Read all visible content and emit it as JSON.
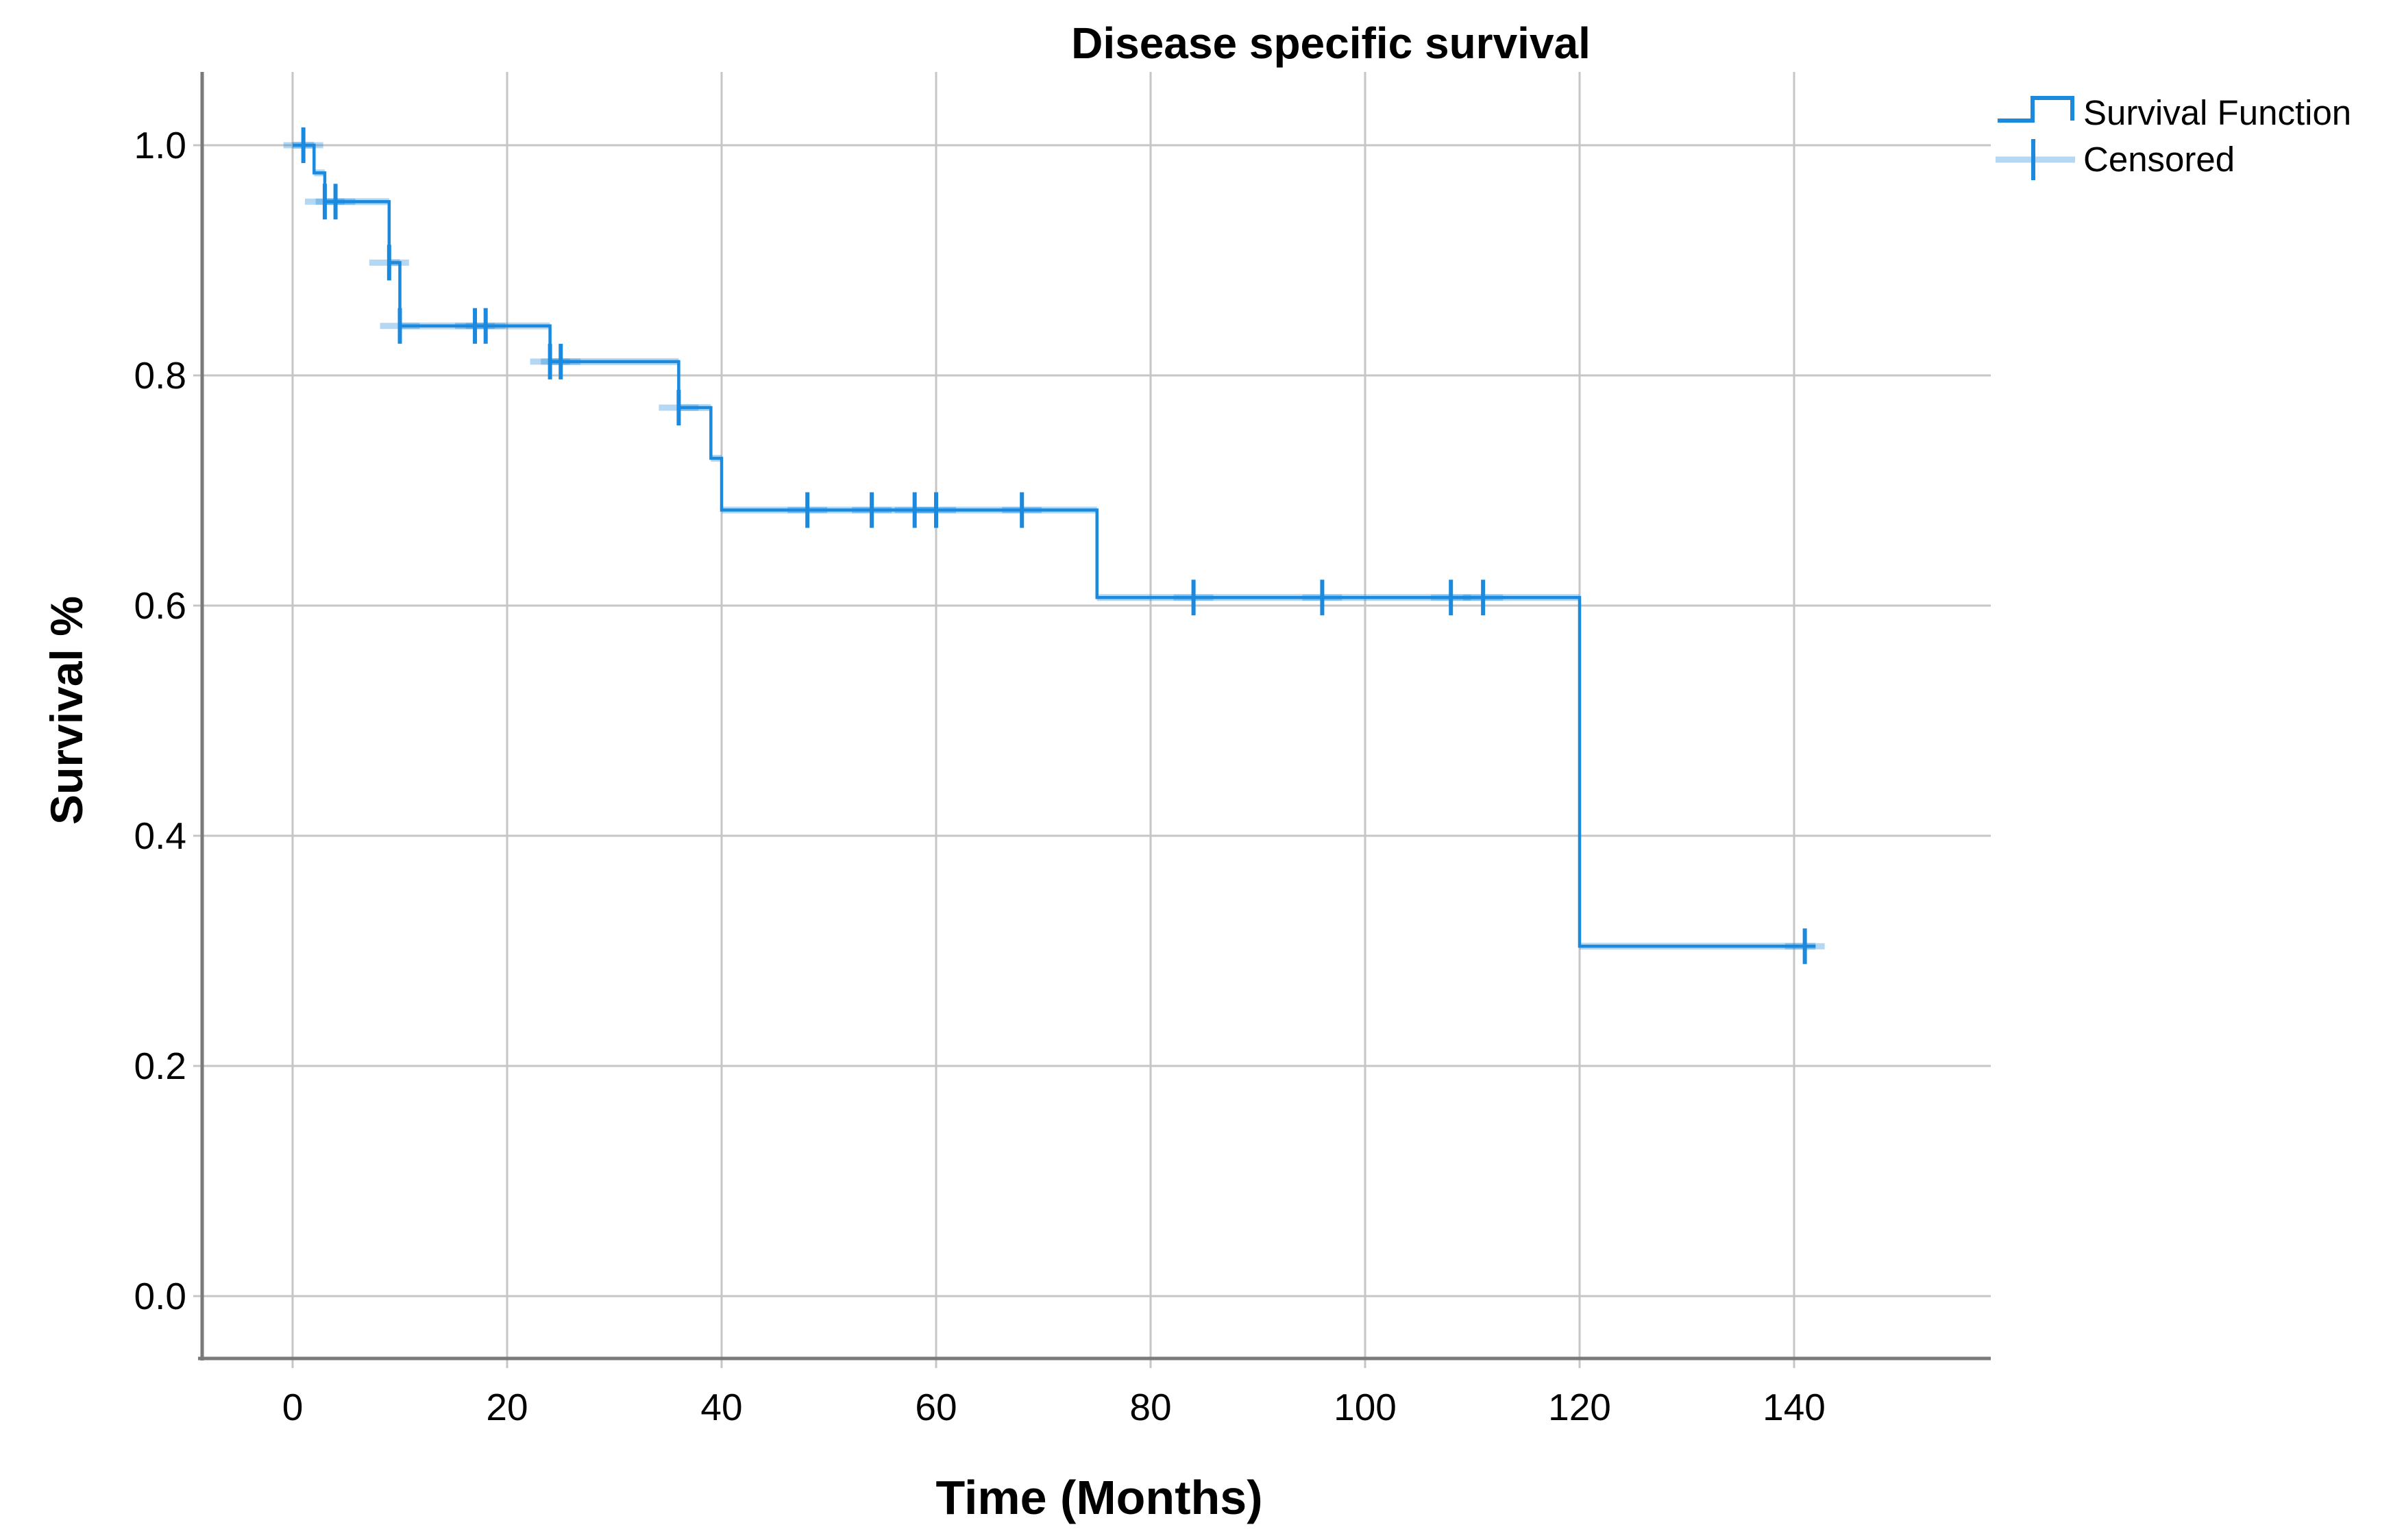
{
  "title": "Disease specific survival",
  "axes": {
    "x_label": "Time (Months)",
    "y_label": "Survival %",
    "x_tick_labels": [
      "0",
      "20",
      "40",
      "60",
      "80",
      "100",
      "120",
      "140"
    ],
    "y_tick_labels": [
      "0.0",
      "0.2",
      "0.4",
      "0.6",
      "0.8",
      "1.0"
    ]
  },
  "legend": {
    "items": [
      {
        "label": "Survival Function",
        "symbol": "step-line"
      },
      {
        "label": "Censored",
        "symbol": "plus-marker"
      }
    ]
  },
  "colors": {
    "curve": "#1A89DE",
    "curve_light": "rgba(26,137,222,0.33)",
    "gridline": "#C6C6C6",
    "axis": "#7A7A7A",
    "text": "#000000",
    "background": "#FFFFFF"
  },
  "chart_data": {
    "type": "line",
    "subtype": "kaplan-meier-step",
    "title": "Disease specific survival",
    "xlabel": "Time (Months)",
    "ylabel": "Survival %",
    "x_ticks": [
      0,
      20,
      40,
      60,
      80,
      100,
      120,
      140
    ],
    "y_ticks": [
      0.0,
      0.2,
      0.4,
      0.6,
      0.8,
      1.0
    ],
    "xlim": [
      -8.5,
      158.5
    ],
    "ylim": [
      -0.054,
      1.064
    ],
    "grid": true,
    "legend_position": "top-right",
    "survival_curve": {
      "start": {
        "t": 0,
        "s": 1.0
      },
      "drops": [
        {
          "t": 2,
          "s": 0.976
        },
        {
          "t": 3,
          "s": 0.951
        },
        {
          "t": 9,
          "s": 0.898
        },
        {
          "t": 10,
          "s": 0.843
        },
        {
          "t": 24,
          "s": 0.812
        },
        {
          "t": 36,
          "s": 0.772
        },
        {
          "t": 39,
          "s": 0.728
        },
        {
          "t": 40,
          "s": 0.683
        },
        {
          "t": 75,
          "s": 0.607
        },
        {
          "t": 120,
          "s": 0.304
        }
      ],
      "end_t": 142
    },
    "censored_points": [
      {
        "t": 1,
        "s": 1.0
      },
      {
        "t": 3,
        "s": 0.951
      },
      {
        "t": 4,
        "s": 0.951
      },
      {
        "t": 9,
        "s": 0.898
      },
      {
        "t": 10,
        "s": 0.843
      },
      {
        "t": 17,
        "s": 0.843
      },
      {
        "t": 18,
        "s": 0.843
      },
      {
        "t": 24,
        "s": 0.812
      },
      {
        "t": 25,
        "s": 0.812
      },
      {
        "t": 36,
        "s": 0.772
      },
      {
        "t": 48,
        "s": 0.683
      },
      {
        "t": 54,
        "s": 0.683
      },
      {
        "t": 58,
        "s": 0.683
      },
      {
        "t": 60,
        "s": 0.683
      },
      {
        "t": 68,
        "s": 0.683
      },
      {
        "t": 84,
        "s": 0.607
      },
      {
        "t": 96,
        "s": 0.607
      },
      {
        "t": 108,
        "s": 0.607
      },
      {
        "t": 111,
        "s": 0.607
      },
      {
        "t": 141,
        "s": 0.304
      }
    ]
  }
}
